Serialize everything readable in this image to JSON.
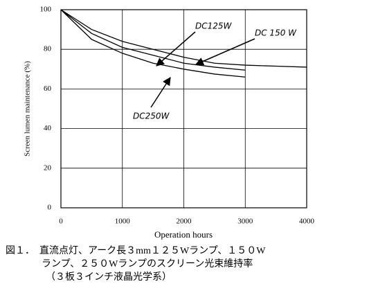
{
  "chart_data": {
    "type": "line",
    "x_label": "Operation hours",
    "y_label": "Screen lumen maintenance (%)",
    "x": [
      0,
      500,
      1000,
      1500,
      2000,
      2500,
      3000,
      3500,
      4000
    ],
    "series": [
      {
        "name": "DC125W",
        "color": "#000000",
        "values": [
          100,
          90,
          84,
          80,
          76,
          73,
          72,
          71.5,
          71
        ]
      },
      {
        "name": "DC 150 W",
        "color": "#000000",
        "values": [
          100,
          88,
          81,
          77,
          73,
          71,
          69.5,
          null,
          null
        ]
      },
      {
        "name": "DC250W",
        "color": "#000000",
        "values": [
          100,
          85,
          78,
          73,
          70,
          67.5,
          66,
          null,
          null
        ]
      }
    ],
    "xlim": [
      0,
      4000
    ],
    "xticks": [
      0,
      1000,
      2000,
      3000,
      4000
    ],
    "ylim": [
      0,
      100
    ],
    "yticks": [
      0,
      20,
      40,
      60,
      80,
      100
    ],
    "grid": true,
    "caption": [
      "図１．　直流点灯、アーク長３mm１２５Wランプ、１５０W",
      "ランプ、２５０Wランプのスクリーン光束維持率",
      "（３板３インチ液晶光学系）"
    ]
  }
}
